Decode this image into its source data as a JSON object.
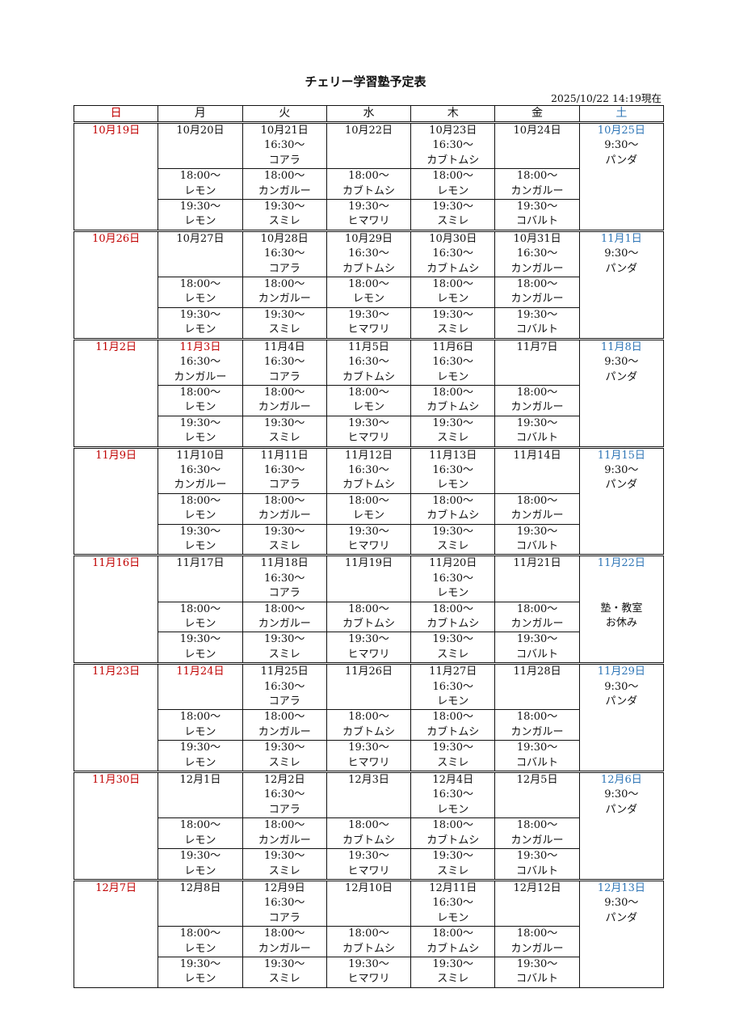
{
  "title": "チェリー学習塾予定表",
  "updated": "2025/10/22 14:19現在",
  "colors": {
    "sunday_holiday": "#c00000",
    "saturday": "#2e75b6"
  },
  "weekdays": [
    "日",
    "月",
    "火",
    "水",
    "木",
    "金",
    "土"
  ],
  "slot_times": [
    "16:30〜",
    "18:00〜",
    "19:30〜"
  ],
  "weeks": [
    {
      "sun": "10月19日",
      "days": [
        {
          "date": "10月20日",
          "classes": [
            null,
            "レモン",
            "レモン"
          ]
        },
        {
          "date": "10月21日",
          "classes": [
            "コアラ",
            "カンガルー",
            "スミレ"
          ]
        },
        {
          "date": "10月22日",
          "classes": [
            null,
            "カブトムシ",
            "ヒマワリ"
          ]
        },
        {
          "date": "10月23日",
          "classes": [
            "カブトムシ",
            "レモン",
            "スミレ"
          ]
        },
        {
          "date": "10月24日",
          "classes": [
            null,
            "カンガルー",
            "コバルト"
          ]
        }
      ],
      "sat": {
        "date": "10月25日",
        "lines": [
          "9:30〜",
          "パンダ"
        ]
      }
    },
    {
      "sun": "10月26日",
      "days": [
        {
          "date": "10月27日",
          "classes": [
            null,
            "レモン",
            "レモン"
          ]
        },
        {
          "date": "10月28日",
          "classes": [
            "コアラ",
            "カンガルー",
            "スミレ"
          ]
        },
        {
          "date": "10月29日",
          "classes": [
            "カブトムシ",
            "レモン",
            "ヒマワリ"
          ]
        },
        {
          "date": "10月30日",
          "classes": [
            "カブトムシ",
            "レモン",
            "スミレ"
          ]
        },
        {
          "date": "10月31日",
          "classes": [
            "カンガルー",
            "カンガルー",
            "コバルト"
          ]
        }
      ],
      "sat": {
        "date": "11月1日",
        "lines": [
          "9:30〜",
          "パンダ"
        ]
      }
    },
    {
      "sun": "11月2日",
      "days": [
        {
          "date": "11月3日",
          "holiday": true,
          "classes": [
            "カンガルー",
            "レモン",
            "レモン"
          ]
        },
        {
          "date": "11月4日",
          "classes": [
            "コアラ",
            "カンガルー",
            "スミレ"
          ]
        },
        {
          "date": "11月5日",
          "classes": [
            "カブトムシ",
            "レモン",
            "ヒマワリ"
          ]
        },
        {
          "date": "11月6日",
          "classes": [
            "レモン",
            "カブトムシ",
            "スミレ"
          ]
        },
        {
          "date": "11月7日",
          "classes": [
            null,
            "カンガルー",
            "コバルト"
          ]
        }
      ],
      "sat": {
        "date": "11月8日",
        "lines": [
          "9:30〜",
          "パンダ"
        ]
      }
    },
    {
      "sun": "11月9日",
      "days": [
        {
          "date": "11月10日",
          "classes": [
            "カンガルー",
            "レモン",
            "レモン"
          ]
        },
        {
          "date": "11月11日",
          "classes": [
            "コアラ",
            "カンガルー",
            "スミレ"
          ]
        },
        {
          "date": "11月12日",
          "classes": [
            "カブトムシ",
            "レモン",
            "ヒマワリ"
          ]
        },
        {
          "date": "11月13日",
          "classes": [
            "レモン",
            "カブトムシ",
            "スミレ"
          ]
        },
        {
          "date": "11月14日",
          "classes": [
            null,
            "カンガルー",
            "コバルト"
          ]
        }
      ],
      "sat": {
        "date": "11月15日",
        "lines": [
          "9:30〜",
          "パンダ"
        ]
      }
    },
    {
      "sun": "11月16日",
      "days": [
        {
          "date": "11月17日",
          "classes": [
            null,
            "レモン",
            "レモン"
          ]
        },
        {
          "date": "11月18日",
          "classes": [
            "コアラ",
            "カンガルー",
            "スミレ"
          ]
        },
        {
          "date": "11月19日",
          "classes": [
            null,
            "カブトムシ",
            "ヒマワリ"
          ]
        },
        {
          "date": "11月20日",
          "classes": [
            "レモン",
            "カブトムシ",
            "スミレ"
          ]
        },
        {
          "date": "11月21日",
          "classes": [
            null,
            "カンガルー",
            "コバルト"
          ]
        }
      ],
      "sat": {
        "date": "11月22日",
        "closed": true,
        "lines": [
          "塾・教室",
          "お休み"
        ]
      }
    },
    {
      "sun": "11月23日",
      "days": [
        {
          "date": "11月24日",
          "holiday": true,
          "classes": [
            null,
            "レモン",
            "レモン"
          ]
        },
        {
          "date": "11月25日",
          "classes": [
            "コアラ",
            "カンガルー",
            "スミレ"
          ]
        },
        {
          "date": "11月26日",
          "classes": [
            null,
            "カブトムシ",
            "ヒマワリ"
          ]
        },
        {
          "date": "11月27日",
          "classes": [
            "レモン",
            "カブトムシ",
            "スミレ"
          ]
        },
        {
          "date": "11月28日",
          "classes": [
            null,
            "カンガルー",
            "コバルト"
          ]
        }
      ],
      "sat": {
        "date": "11月29日",
        "lines": [
          "9:30〜",
          "パンダ"
        ]
      }
    },
    {
      "sun": "11月30日",
      "days": [
        {
          "date": "12月1日",
          "classes": [
            null,
            "レモン",
            "レモン"
          ]
        },
        {
          "date": "12月2日",
          "classes": [
            "コアラ",
            "カンガルー",
            "スミレ"
          ]
        },
        {
          "date": "12月3日",
          "classes": [
            null,
            "カブトムシ",
            "ヒマワリ"
          ]
        },
        {
          "date": "12月4日",
          "classes": [
            "レモン",
            "カブトムシ",
            "スミレ"
          ]
        },
        {
          "date": "12月5日",
          "classes": [
            null,
            "カンガルー",
            "コバルト"
          ]
        }
      ],
      "sat": {
        "date": "12月6日",
        "lines": [
          "9:30〜",
          "パンダ"
        ]
      }
    },
    {
      "sun": "12月7日",
      "days": [
        {
          "date": "12月8日",
          "classes": [
            null,
            "レモン",
            "レモン"
          ]
        },
        {
          "date": "12月9日",
          "classes": [
            "コアラ",
            "カンガルー",
            "スミレ"
          ]
        },
        {
          "date": "12月10日",
          "classes": [
            null,
            "カブトムシ",
            "ヒマワリ"
          ]
        },
        {
          "date": "12月11日",
          "classes": [
            "レモン",
            "カブトムシ",
            "スミレ"
          ]
        },
        {
          "date": "12月12日",
          "classes": [
            null,
            "カンガルー",
            "コバルト"
          ]
        }
      ],
      "sat": {
        "date": "12月13日",
        "lines": [
          "9:30〜",
          "パンダ"
        ]
      }
    }
  ]
}
